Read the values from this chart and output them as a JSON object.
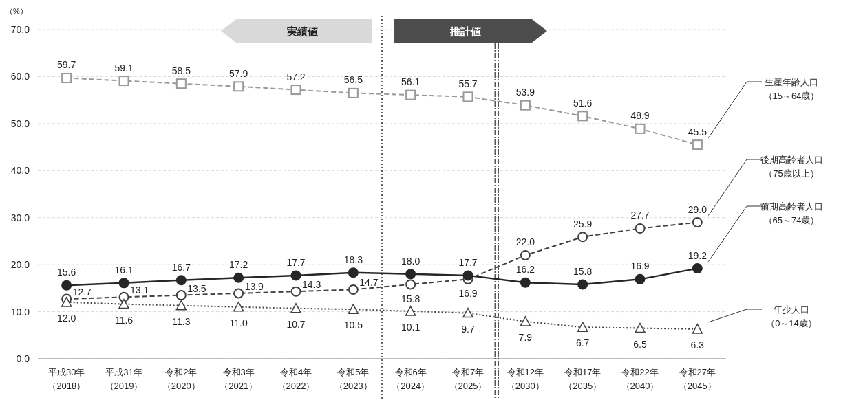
{
  "chart_data": {
    "type": "line",
    "ylabel": "（%）",
    "categories": [
      "平成30年（2018）",
      "平成31年（2019）",
      "令和2年（2020）",
      "令和3年（2021）",
      "令和4年（2022）",
      "令和5年（2023）",
      "令和6年（2024）",
      "令和7年（2025）",
      "令和12年（2030）",
      "令和17年（2035）",
      "令和22年（2040）",
      "令和27年（2045）"
    ],
    "series": [
      {
        "name": "生産年齢人口（15～64歳）",
        "color": "#999999",
        "marker": "square",
        "line_style": "dashed",
        "values": [
          59.7,
          59.1,
          58.5,
          57.9,
          57.2,
          56.5,
          56.1,
          55.7,
          53.9,
          51.6,
          48.9,
          45.5
        ],
        "value_labels": [
          "59.7",
          "59.1",
          "58.5",
          "57.9",
          "57.2",
          "56.5",
          "56.1",
          "55.7",
          "53.9",
          "51.6",
          "48.9",
          "45.5"
        ]
      },
      {
        "name": "後期高齢者人口（75歳以上）",
        "color": "#404040",
        "marker": "circle",
        "line_style": "dashed",
        "values": [
          12.7,
          13.1,
          13.5,
          13.9,
          14.3,
          14.7,
          15.8,
          16.9,
          22.0,
          25.9,
          27.7,
          29.0
        ],
        "value_labels": [
          "12.7",
          "13.1",
          "13.5",
          "13.9",
          "14.3",
          "14.7",
          "15.8",
          "16.9",
          "22.0",
          "25.9",
          "27.7",
          "29.0"
        ]
      },
      {
        "name": "前期高齢者人口（65～74歳）",
        "color": "#262626",
        "marker": "circle",
        "line_style": "solid",
        "values": [
          15.6,
          16.1,
          16.7,
          17.2,
          17.7,
          18.3,
          18.0,
          17.7,
          16.2,
          15.8,
          16.9,
          19.2
        ],
        "value_labels": [
          "15.6",
          "16.1",
          "16.7",
          "17.2",
          "17.7",
          "18.3",
          "18.0",
          "17.7",
          "16.2",
          "15.8",
          "16.9",
          "19.2"
        ]
      },
      {
        "name": "年少人口（0～14歳）",
        "color": "#404040",
        "marker": "triangle",
        "line_style": "dotted",
        "values": [
          12.0,
          11.6,
          11.3,
          11.0,
          10.7,
          10.5,
          10.1,
          9.7,
          7.9,
          6.7,
          6.5,
          6.3
        ],
        "value_labels": [
          "12.0",
          "11.6",
          "11.3",
          "11.0",
          "10.7",
          "10.5",
          "10.1",
          "9.7",
          "7.9",
          "6.7",
          "6.5",
          "6.3"
        ]
      }
    ],
    "ylim": [
      0,
      70
    ],
    "yticks": [
      {
        "value": 0,
        "label": "0.0"
      },
      {
        "value": 10,
        "label": "10.0"
      },
      {
        "value": 20,
        "label": "20.0"
      },
      {
        "value": 30,
        "label": "30.0"
      },
      {
        "value": 40,
        "label": "40.0"
      },
      {
        "value": 50,
        "label": "50.0"
      },
      {
        "value": 60,
        "label": "60.0"
      },
      {
        "value": 70,
        "label": "70.0"
      }
    ],
    "grid": "y",
    "legend": false,
    "annotations": [
      "実績値",
      "推計値"
    ]
  }
}
